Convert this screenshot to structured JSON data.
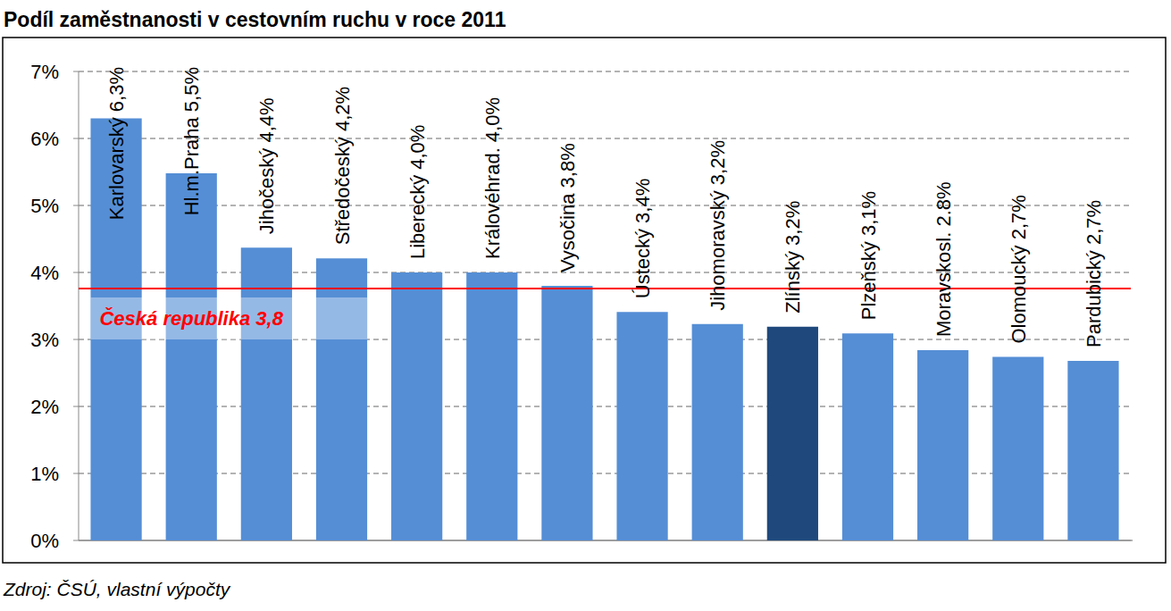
{
  "chart_data": {
    "type": "bar",
    "title": "Podíl zaměstnanosti v cestovním ruchu v roce 2011",
    "source": "Zdroj: ČSÚ, vlastní výpočty",
    "categories": [
      "Karlovarský",
      "Hl.m.Praha",
      "Jihočeský",
      "Středočeský",
      "Liberecký",
      "Královéhrad.",
      "Vysočina",
      "Ústecký",
      "Jihomoravský",
      "Zlínský",
      "Plzeňský",
      "Moravskosl.",
      "Olomoucký",
      "Pardubický"
    ],
    "values": [
      6.3,
      5.48,
      4.37,
      4.21,
      4.0,
      4.0,
      3.8,
      3.41,
      3.23,
      3.19,
      3.09,
      2.84,
      2.74,
      2.68
    ],
    "value_labels": [
      "6,3%",
      "5,5%",
      "4,4%",
      "4,2%",
      "4,0%",
      "4,0%",
      "3,8%",
      "3,4%",
      "3,2%",
      "3,2%",
      "3,1%",
      "2.8%",
      "2,7%",
      "2,7%"
    ],
    "colors": [
      "#558ed5",
      "#558ed5",
      "#558ed5",
      "#558ed5",
      "#558ed5",
      "#558ed5",
      "#558ed5",
      "#558ed5",
      "#558ed5",
      "#1f497d",
      "#558ed5",
      "#558ed5",
      "#558ed5",
      "#558ed5"
    ],
    "reference_line": {
      "value": 3.76,
      "label": "Česká republika 3,8",
      "color": "#ff0000"
    },
    "ylim": [
      0,
      7
    ],
    "yticks": [
      {
        "value": 0,
        "label": "0%"
      },
      {
        "value": 1,
        "label": "1%"
      },
      {
        "value": 2,
        "label": "2%"
      },
      {
        "value": 3,
        "label": "3%"
      },
      {
        "value": 4,
        "label": "4%"
      },
      {
        "value": 5,
        "label": "5%"
      },
      {
        "value": 6,
        "label": "6%"
      },
      {
        "value": 7,
        "label": "7%"
      }
    ],
    "grid": true,
    "data_labels": true,
    "tick_labels": "y"
  }
}
